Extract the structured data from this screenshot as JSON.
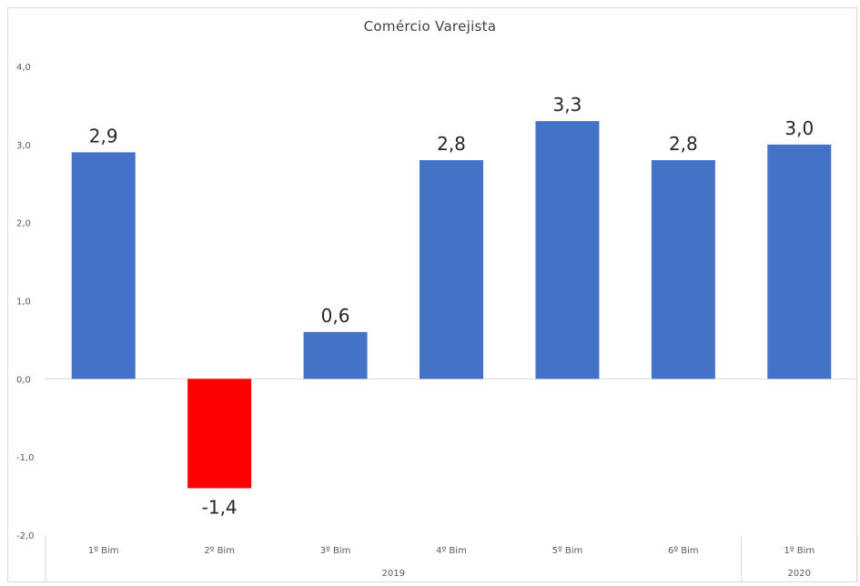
{
  "chart_data": {
    "type": "bar",
    "title": "Comércio Varejista",
    "categories": [
      "1º Bim",
      "2º Bim",
      "3º Bim",
      "4º Bim",
      "5º Bim",
      "6º Bim",
      "1º Bim"
    ],
    "groups": [
      {
        "label": "2019",
        "count": 6
      },
      {
        "label": "2020",
        "count": 1
      }
    ],
    "values": [
      2.9,
      -1.4,
      0.6,
      2.8,
      3.3,
      2.8,
      3.0
    ],
    "data_labels": [
      "2,9",
      "-1,4",
      "0,6",
      "2,8",
      "3,3",
      "2,8",
      "3,0"
    ],
    "ylim": [
      -2.0,
      4.0
    ],
    "yticks": [
      -2.0,
      -1.0,
      0.0,
      1.0,
      2.0,
      3.0,
      4.0
    ],
    "ytick_labels": [
      "-2,0",
      "-1,0",
      "0,0",
      "1,0",
      "2,0",
      "3,0",
      "4,0"
    ],
    "grid": false,
    "legend": "none",
    "colors": {
      "positive": "#4472C4",
      "negative": "#FF0000",
      "axis": "#d9d9d9"
    }
  }
}
